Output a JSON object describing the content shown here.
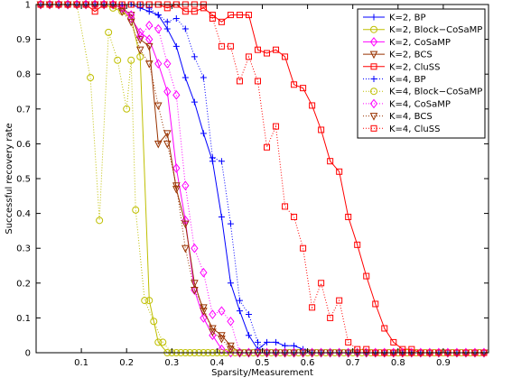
{
  "chart_data": {
    "type": "line",
    "xlabel": "Sparsity/Measurement",
    "ylabel": "Successful recovery rate",
    "xlim": [
      0,
      1
    ],
    "ylim": [
      0,
      1
    ],
    "xticks": [
      0.1,
      0.2,
      0.3,
      0.4,
      0.5,
      0.6,
      0.7,
      0.8,
      0.9
    ],
    "yticks": [
      0,
      0.1,
      0.2,
      0.3,
      0.4,
      0.5,
      0.6,
      0.7,
      0.8,
      0.9,
      1
    ],
    "grid": false,
    "legend_position": "top-right",
    "series": [
      {
        "name": "K=2, BP",
        "color": "#0000ff",
        "marker": "plus",
        "linestyle": "solid",
        "x": [
          0.01,
          0.03,
          0.05,
          0.07,
          0.09,
          0.11,
          0.13,
          0.15,
          0.17,
          0.19,
          0.21,
          0.23,
          0.25,
          0.27,
          0.29,
          0.31,
          0.33,
          0.35,
          0.37,
          0.39,
          0.41,
          0.43,
          0.45,
          0.47,
          0.49,
          0.51,
          0.53,
          0.55,
          0.57,
          0.59,
          0.61,
          0.63,
          0.65,
          0.67,
          0.69,
          0.71,
          0.73,
          0.75,
          0.77,
          0.79,
          0.81,
          0.83,
          0.85,
          0.87,
          0.89,
          0.91,
          0.93,
          0.95,
          0.97,
          0.99
        ],
        "y": [
          1,
          1,
          1,
          1,
          1,
          1,
          1,
          1,
          1,
          1,
          1,
          0.99,
          0.98,
          0.97,
          0.93,
          0.88,
          0.79,
          0.72,
          0.63,
          0.55,
          0.39,
          0.2,
          0.12,
          0.05,
          0.01,
          0.03,
          0.03,
          0.02,
          0.02,
          0.01,
          0,
          0,
          0,
          0,
          0,
          0,
          0,
          0,
          0,
          0,
          0,
          0,
          0,
          0,
          0,
          0,
          0,
          0,
          0,
          0
        ]
      },
      {
        "name": "K=2, Block−CoSaMP",
        "color": "#bfbf00",
        "marker": "circle",
        "linestyle": "solid",
        "x": [
          0.01,
          0.03,
          0.05,
          0.07,
          0.09,
          0.11,
          0.13,
          0.15,
          0.17,
          0.19,
          0.21,
          0.23,
          0.25,
          0.27,
          0.29,
          0.31,
          0.33,
          0.35,
          0.37,
          0.39,
          0.41,
          0.43,
          0.45,
          0.47,
          0.49,
          0.51,
          0.53,
          0.55,
          0.57,
          0.59,
          0.61,
          0.63,
          0.65,
          0.67,
          0.69,
          0.71,
          0.73,
          0.75,
          0.77,
          0.79,
          0.81,
          0.83,
          0.85,
          0.87,
          0.89,
          0.91,
          0.93,
          0.95,
          0.97,
          0.99
        ],
        "y": [
          1,
          1,
          1,
          1,
          1,
          1,
          1,
          1,
          0.99,
          0.98,
          0.96,
          0.85,
          0.15,
          0.03,
          0,
          0,
          0,
          0,
          0,
          0,
          0,
          0,
          0,
          0,
          0,
          0,
          0,
          0,
          0,
          0,
          0,
          0,
          0,
          0,
          0,
          0,
          0,
          0,
          0,
          0,
          0,
          0,
          0,
          0,
          0,
          0,
          0,
          0,
          0,
          0
        ]
      },
      {
        "name": "K=2, CoSaMP",
        "color": "#ff00ff",
        "marker": "diamond",
        "linestyle": "solid",
        "x": [
          0.01,
          0.03,
          0.05,
          0.07,
          0.09,
          0.11,
          0.13,
          0.15,
          0.17,
          0.19,
          0.21,
          0.23,
          0.25,
          0.27,
          0.29,
          0.31,
          0.33,
          0.35,
          0.37,
          0.39,
          0.41,
          0.43,
          0.45,
          0.47,
          0.49,
          0.51,
          0.53,
          0.55,
          0.57,
          0.59,
          0.61,
          0.63,
          0.65,
          0.67,
          0.69,
          0.71,
          0.73,
          0.75,
          0.77,
          0.79,
          0.81,
          0.83,
          0.85,
          0.87,
          0.89,
          0.91,
          0.93,
          0.95,
          0.97,
          0.99
        ],
        "y": [
          1,
          1,
          1,
          1,
          1,
          1,
          1,
          1,
          1,
          0.99,
          0.96,
          0.92,
          0.9,
          0.83,
          0.75,
          0.53,
          0.38,
          0.18,
          0.1,
          0.05,
          0.01,
          0,
          0,
          0,
          0,
          0,
          0,
          0,
          0,
          0,
          0,
          0,
          0,
          0,
          0,
          0,
          0,
          0,
          0,
          0,
          0,
          0,
          0,
          0,
          0,
          0,
          0,
          0,
          0,
          0
        ]
      },
      {
        "name": "K=2, BCS",
        "color": "#993300",
        "marker": "triangle-down",
        "linestyle": "solid",
        "x": [
          0.01,
          0.03,
          0.05,
          0.07,
          0.09,
          0.11,
          0.13,
          0.15,
          0.17,
          0.19,
          0.21,
          0.23,
          0.25,
          0.27,
          0.29,
          0.31,
          0.33,
          0.35,
          0.37,
          0.39,
          0.41,
          0.43,
          0.45,
          0.47,
          0.49,
          0.51,
          0.53,
          0.55,
          0.57,
          0.59,
          0.61,
          0.63,
          0.65,
          0.67,
          0.69,
          0.71,
          0.73,
          0.75,
          0.77,
          0.79,
          0.81,
          0.83,
          0.85,
          0.87,
          0.89,
          0.91,
          0.93,
          0.95,
          0.97,
          0.99
        ],
        "y": [
          1,
          1,
          1,
          1,
          1,
          1,
          1,
          1,
          1,
          0.99,
          0.97,
          0.9,
          0.88,
          0.6,
          0.63,
          0.47,
          0.37,
          0.2,
          0.12,
          0.07,
          0.05,
          0.02,
          0,
          0,
          0,
          0,
          0,
          0,
          0,
          0,
          0,
          0,
          0,
          0,
          0,
          0,
          0,
          0,
          0,
          0,
          0,
          0,
          0,
          0,
          0,
          0,
          0,
          0,
          0,
          0
        ]
      },
      {
        "name": "K=2, CluSS",
        "color": "#ff0000",
        "marker": "square",
        "linestyle": "solid",
        "x": [
          0.01,
          0.03,
          0.05,
          0.07,
          0.09,
          0.11,
          0.13,
          0.15,
          0.17,
          0.19,
          0.21,
          0.23,
          0.25,
          0.27,
          0.29,
          0.31,
          0.33,
          0.35,
          0.37,
          0.39,
          0.41,
          0.43,
          0.45,
          0.47,
          0.49,
          0.51,
          0.53,
          0.55,
          0.57,
          0.59,
          0.61,
          0.63,
          0.65,
          0.67,
          0.69,
          0.71,
          0.73,
          0.75,
          0.77,
          0.79,
          0.81,
          0.83,
          0.85,
          0.87,
          0.89,
          0.91,
          0.93,
          0.95,
          0.97,
          0.99
        ],
        "y": [
          1,
          1,
          1,
          1,
          1,
          1,
          0.98,
          1,
          1,
          1,
          1,
          1,
          1,
          1,
          0.99,
          1,
          0.98,
          0.98,
          0.99,
          0.97,
          0.95,
          0.97,
          0.97,
          0.97,
          0.87,
          0.86,
          0.87,
          0.85,
          0.77,
          0.76,
          0.71,
          0.64,
          0.55,
          0.52,
          0.39,
          0.31,
          0.22,
          0.14,
          0.07,
          0.03,
          0.01,
          0.01,
          0,
          0,
          0,
          0,
          0,
          0,
          0,
          0
        ]
      },
      {
        "name": "K=4, BP",
        "color": "#0000ff",
        "marker": "plus",
        "linestyle": "dotted",
        "x": [
          0.01,
          0.03,
          0.05,
          0.07,
          0.09,
          0.11,
          0.13,
          0.15,
          0.17,
          0.19,
          0.21,
          0.23,
          0.25,
          0.27,
          0.29,
          0.31,
          0.33,
          0.35,
          0.37,
          0.39,
          0.41,
          0.43,
          0.45,
          0.47,
          0.49,
          0.51,
          0.53,
          0.55,
          0.57,
          0.59,
          0.61,
          0.63,
          0.65,
          0.67,
          0.69,
          0.71,
          0.73,
          0.75,
          0.77,
          0.79,
          0.81,
          0.83,
          0.85,
          0.87,
          0.89,
          0.91,
          0.93,
          0.95,
          0.97,
          0.99
        ],
        "y": [
          1,
          1,
          1,
          1,
          1,
          1,
          1,
          1,
          1,
          1,
          1,
          1,
          0.99,
          0.97,
          0.95,
          0.96,
          0.93,
          0.85,
          0.79,
          0.56,
          0.55,
          0.37,
          0.15,
          0.11,
          0.03,
          0,
          0,
          0,
          0,
          0,
          0,
          0,
          0,
          0,
          0,
          0,
          0,
          0,
          0,
          0,
          0,
          0,
          0,
          0,
          0,
          0,
          0,
          0,
          0,
          0
        ]
      },
      {
        "name": "K=4, Block−CoSaMP",
        "color": "#bfbf00",
        "marker": "circle",
        "linestyle": "dotted",
        "x": [
          0.01,
          0.03,
          0.05,
          0.07,
          0.09,
          0.12,
          0.14,
          0.16,
          0.18,
          0.2,
          0.21,
          0.22,
          0.24,
          0.26,
          0.28,
          0.3,
          0.32,
          0.34,
          0.36,
          0.38,
          0.4,
          0.42,
          0.44,
          0.46,
          0.48,
          0.5,
          0.52,
          0.54,
          0.56,
          0.58,
          0.6,
          0.62,
          0.64,
          0.66,
          0.68,
          0.7,
          0.72,
          0.74,
          0.76,
          0.78,
          0.8,
          0.82,
          0.84,
          0.86,
          0.88,
          0.9,
          0.92,
          0.94,
          0.96,
          0.98
        ],
        "y": [
          1,
          1,
          1,
          1,
          1,
          0.79,
          0.38,
          0.92,
          0.84,
          0.7,
          0.84,
          0.41,
          0.15,
          0.09,
          0.03,
          0,
          0,
          0,
          0,
          0,
          0,
          0,
          0,
          0,
          0,
          0,
          0,
          0,
          0,
          0,
          0,
          0,
          0,
          0,
          0,
          0,
          0,
          0,
          0,
          0,
          0,
          0,
          0,
          0,
          0,
          0,
          0,
          0,
          0,
          0
        ]
      },
      {
        "name": "K=4, CoSaMP",
        "color": "#ff00ff",
        "marker": "diamond",
        "linestyle": "dotted",
        "x": [
          0.01,
          0.03,
          0.05,
          0.07,
          0.09,
          0.11,
          0.13,
          0.15,
          0.17,
          0.19,
          0.21,
          0.23,
          0.25,
          0.27,
          0.29,
          0.31,
          0.33,
          0.35,
          0.37,
          0.39,
          0.41,
          0.43,
          0.45,
          0.47,
          0.49,
          0.51,
          0.53,
          0.55,
          0.57,
          0.59,
          0.61,
          0.63,
          0.65,
          0.67,
          0.69,
          0.71,
          0.73,
          0.75,
          0.77,
          0.79,
          0.81,
          0.83,
          0.85,
          0.87,
          0.89,
          0.91,
          0.93,
          0.95,
          0.97,
          0.99
        ],
        "y": [
          1,
          1,
          1,
          1,
          1,
          1,
          1,
          1,
          1,
          0.99,
          0.97,
          0.91,
          0.94,
          0.93,
          0.83,
          0.74,
          0.48,
          0.3,
          0.23,
          0.11,
          0.12,
          0.09,
          0,
          0,
          0,
          0,
          0,
          0,
          0,
          0,
          0,
          0,
          0,
          0,
          0,
          0,
          0,
          0,
          0,
          0,
          0,
          0,
          0,
          0,
          0,
          0,
          0,
          0,
          0,
          0
        ]
      },
      {
        "name": "K=4, BCS",
        "color": "#993300",
        "marker": "triangle-down",
        "linestyle": "dotted",
        "x": [
          0.01,
          0.03,
          0.05,
          0.07,
          0.09,
          0.11,
          0.13,
          0.15,
          0.17,
          0.19,
          0.21,
          0.23,
          0.25,
          0.27,
          0.29,
          0.31,
          0.33,
          0.35,
          0.37,
          0.39,
          0.41,
          0.43,
          0.45,
          0.47,
          0.49,
          0.51,
          0.53,
          0.55,
          0.57,
          0.59,
          0.61,
          0.63,
          0.65,
          0.67,
          0.69,
          0.71,
          0.73,
          0.75,
          0.77,
          0.79,
          0.81,
          0.83,
          0.85,
          0.87,
          0.89,
          0.91,
          0.93,
          0.95,
          0.97,
          0.99
        ],
        "y": [
          1,
          1,
          1,
          1,
          1,
          1,
          1,
          1,
          1,
          0.98,
          0.95,
          0.87,
          0.83,
          0.71,
          0.6,
          0.48,
          0.3,
          0.18,
          0.13,
          0.06,
          0.04,
          0.01,
          0,
          0,
          0,
          0,
          0,
          0,
          0,
          0,
          0,
          0,
          0,
          0,
          0,
          0,
          0,
          0,
          0,
          0,
          0,
          0,
          0,
          0,
          0,
          0,
          0,
          0,
          0,
          0
        ]
      },
      {
        "name": "K=4, CluSS",
        "color": "#ff0000",
        "marker": "square",
        "linestyle": "dotted",
        "x": [
          0.01,
          0.03,
          0.05,
          0.07,
          0.09,
          0.11,
          0.13,
          0.15,
          0.17,
          0.19,
          0.21,
          0.23,
          0.25,
          0.27,
          0.29,
          0.31,
          0.33,
          0.35,
          0.37,
          0.39,
          0.41,
          0.43,
          0.45,
          0.47,
          0.49,
          0.51,
          0.53,
          0.55,
          0.57,
          0.59,
          0.61,
          0.63,
          0.65,
          0.67,
          0.69,
          0.71,
          0.73,
          0.75,
          0.77,
          0.79,
          0.81,
          0.83,
          0.85,
          0.87,
          0.89,
          0.91,
          0.93,
          0.95,
          0.97,
          0.99
        ],
        "y": [
          1,
          1,
          1,
          1,
          1,
          1,
          1,
          1,
          1,
          1,
          1,
          1,
          1,
          1,
          1,
          1,
          1,
          1,
          1,
          0.96,
          0.88,
          0.88,
          0.78,
          0.85,
          0.78,
          0.59,
          0.65,
          0.42,
          0.39,
          0.3,
          0.13,
          0.2,
          0.1,
          0.15,
          0.03,
          0.01,
          0.01,
          0,
          0,
          0,
          0,
          0,
          0,
          0,
          0,
          0,
          0,
          0,
          0,
          0
        ]
      }
    ]
  }
}
